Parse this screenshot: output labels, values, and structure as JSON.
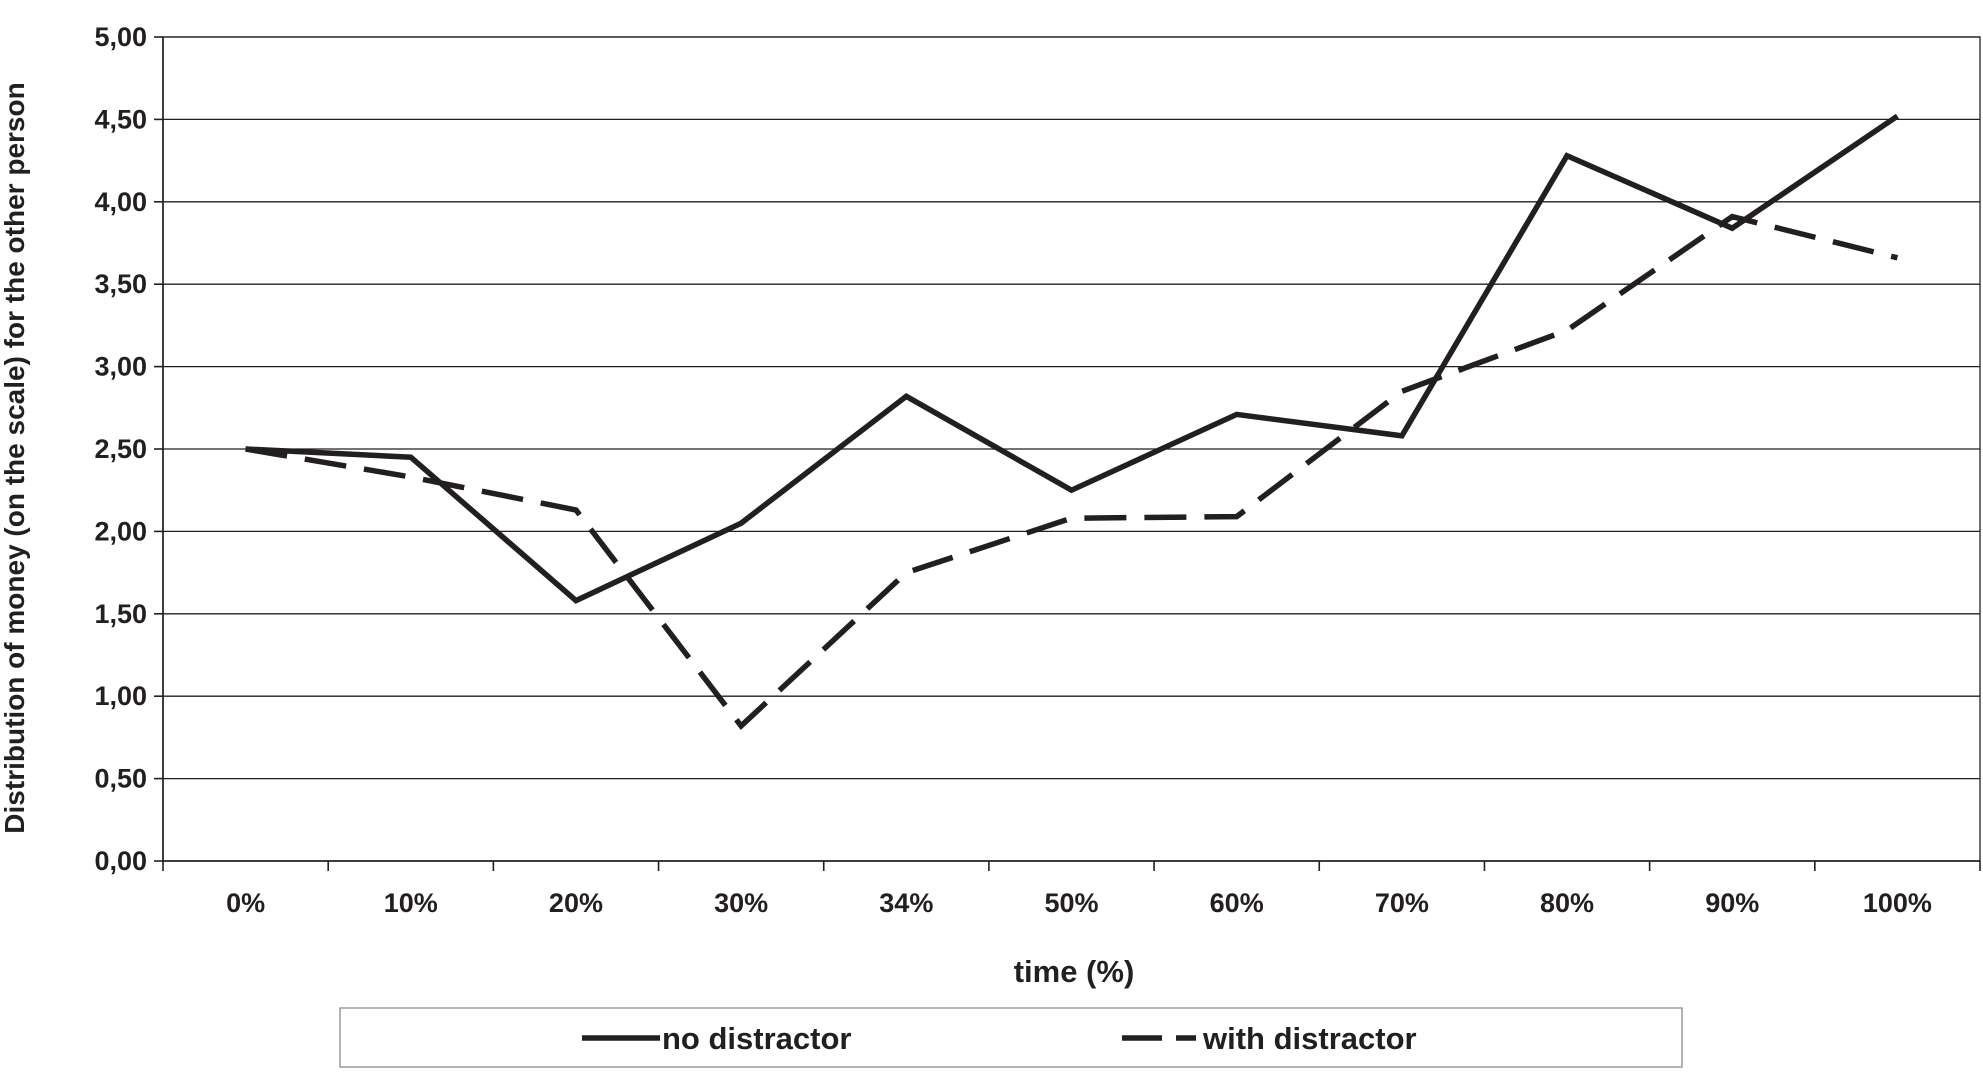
{
  "chart_data": {
    "type": "line",
    "title": "",
    "xlabel": "time (%)",
    "ylabel": "Distribution of money (on the scale) for the other person",
    "ylim": [
      0,
      5
    ],
    "yticks": [
      "0,00",
      "0,50",
      "1,00",
      "1,50",
      "2,00",
      "2,50",
      "3,00",
      "3,50",
      "4,00",
      "4,50",
      "5,00"
    ],
    "categories": [
      "0%",
      "10%",
      "20%",
      "30%",
      "34%",
      "50%",
      "60%",
      "70%",
      "80%",
      "90%",
      "100%"
    ],
    "grid": true,
    "legend_position": "bottom",
    "series": [
      {
        "name": "no distractor",
        "style": "solid",
        "color": "#231f20",
        "values": [
          2.5,
          2.45,
          1.58,
          2.05,
          2.82,
          2.25,
          2.71,
          2.58,
          4.28,
          3.84,
          4.52
        ]
      },
      {
        "name": "with distractor",
        "style": "dashed",
        "color": "#231f20",
        "values": [
          2.5,
          2.33,
          2.13,
          0.82,
          1.75,
          2.08,
          2.09,
          2.85,
          3.22,
          3.91,
          3.66
        ]
      }
    ]
  }
}
